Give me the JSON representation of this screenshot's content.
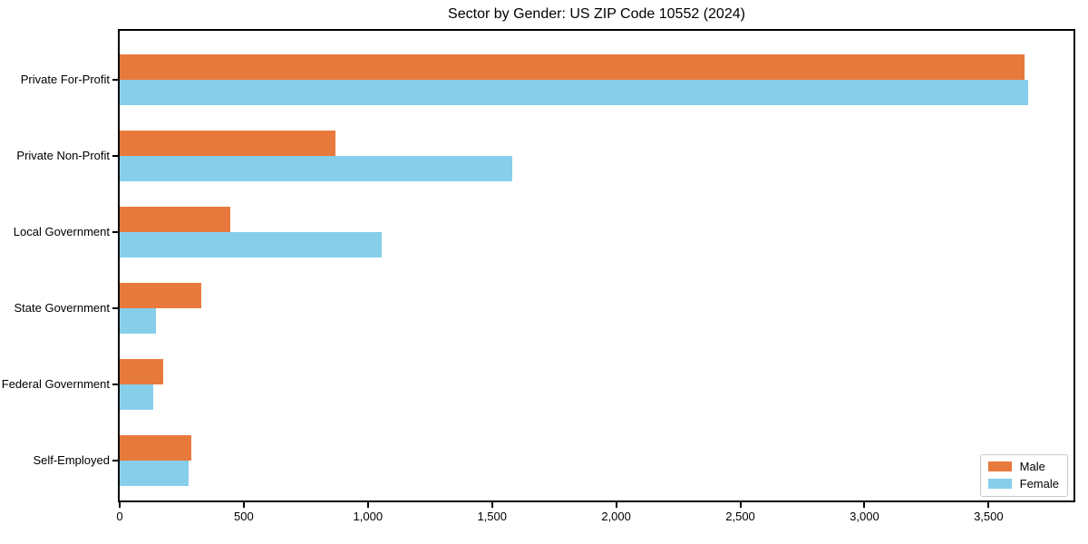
{
  "chart_data": {
    "type": "bar",
    "orientation": "horizontal",
    "title": "Sector by Gender: US ZIP Code 10552 (2024)",
    "categories": [
      "Private For-Profit",
      "Private Non-Profit",
      "Local Government",
      "State Government",
      "Federal Government",
      "Self-Employed"
    ],
    "series": [
      {
        "name": "Male",
        "color": "#E8793C",
        "values": [
          3644,
          868,
          445,
          327,
          176,
          288
        ]
      },
      {
        "name": "Female",
        "color": "#87CEEB",
        "values": [
          3659,
          1580,
          1055,
          145,
          136,
          279
        ]
      }
    ],
    "xlabel": "",
    "ylabel": "",
    "xlim": [
      0,
      3842
    ],
    "xticks": [
      {
        "value": 0,
        "label": "0"
      },
      {
        "value": 500,
        "label": "500"
      },
      {
        "value": 1000,
        "label": "1,000"
      },
      {
        "value": 1500,
        "label": "1,500"
      },
      {
        "value": 2000,
        "label": "2,000"
      },
      {
        "value": 2500,
        "label": "2,500"
      },
      {
        "value": 3000,
        "label": "3,000"
      },
      {
        "value": 3500,
        "label": "3,500"
      }
    ],
    "grid": false,
    "legend_position": "lower right"
  },
  "colors": {
    "spine": "#000000",
    "text": "#000000",
    "background": "#ffffff",
    "legend_border": "#c9c9c9"
  }
}
